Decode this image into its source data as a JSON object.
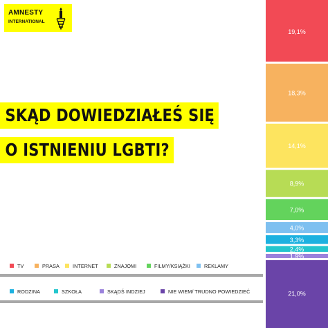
{
  "logo": {
    "line1": "AMNESTY",
    "line2": "INTERNATIONAL",
    "color": "#ffff00",
    "icon": "candle-barbed-wire-icon"
  },
  "heading": {
    "line1": "SKĄD DOWIEDZIAŁEŚ SIĘ",
    "line2": "O ISTNIENIU LGBTI?"
  },
  "chart_data": {
    "type": "bar",
    "orientation": "stacked-vertical",
    "title": "SKĄD DOWIEDZIAŁEŚ SIĘ O ISTNIENIU LGBTI?",
    "categories": [
      "TV",
      "PRASA",
      "INTERNET",
      "ZNAJOMI",
      "FILMY/KSIĄŻKI",
      "REKLAMY",
      "RODZINA",
      "SZKOŁA",
      "SKĄDŚ INDZIEJ",
      "NIE WIEM/ TRUDNO POWIEDZIEĆ"
    ],
    "values": [
      19.1,
      18.3,
      14.1,
      8.9,
      7.0,
      4.0,
      3.3,
      2.4,
      1.9,
      21.0
    ],
    "labels": [
      "19,1%",
      "18,3%",
      "14,1%",
      "8,9%",
      "7,0%",
      "4,0%",
      "3,3%",
      "2,4%",
      "1,9%",
      "21,0%"
    ],
    "colors": [
      "#f24a55",
      "#f7b25f",
      "#fde45f",
      "#b7dc55",
      "#63d35c",
      "#7ec0f0",
      "#1cb1e0",
      "#23c6cd",
      "#9b82dc",
      "#6a44a8"
    ],
    "legend_position": "bottom-left"
  }
}
